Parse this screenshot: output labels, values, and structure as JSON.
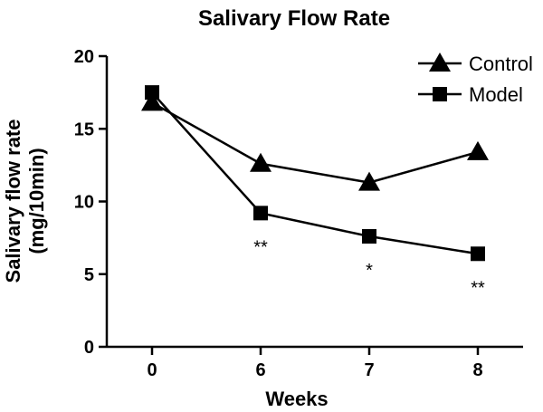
{
  "chart_data": {
    "type": "line",
    "title": "Salivary Flow Rate",
    "xlabel": "Weeks",
    "ylabel_line1": "Salivary flow rate",
    "ylabel_line2": "(mg/10min)",
    "categories": [
      "0",
      "6",
      "7",
      "8"
    ],
    "yticks": [
      0,
      5,
      10,
      15,
      20
    ],
    "ylim": [
      0,
      20
    ],
    "grid": false,
    "legend_position": "top-right",
    "series": [
      {
        "name": "Control",
        "marker": "triangle",
        "values": [
          16.8,
          12.6,
          11.3,
          13.4
        ]
      },
      {
        "name": "Model",
        "marker": "square",
        "values": [
          17.5,
          9.2,
          7.6,
          6.4
        ]
      }
    ],
    "annotations": [
      {
        "category": "6",
        "text": "**"
      },
      {
        "category": "7",
        "text": "*"
      },
      {
        "category": "8",
        "text": "**"
      }
    ]
  }
}
